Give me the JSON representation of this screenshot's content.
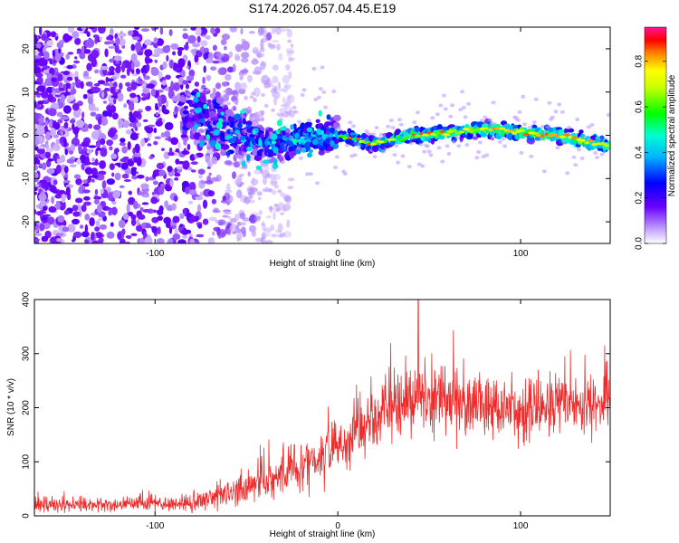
{
  "figure_title": "S174.2026.057.04.45.E19",
  "chart_data": [
    {
      "type": "heatmap",
      "title": "S174.2026.057.04.45.E19",
      "xlabel": "Height of straight line (km)",
      "ylabel": "Frequency (Hz)",
      "xlim": [
        -166,
        149
      ],
      "ylim": [
        -25,
        25
      ],
      "xticks": [
        -100,
        0,
        100
      ],
      "yticks": [
        -20,
        -10,
        0,
        10,
        20
      ],
      "xtick_labels": [
        "-100",
        "0",
        "100"
      ],
      "ytick_labels": [
        "-20",
        "-10",
        "0",
        "10",
        "20"
      ],
      "grid": false,
      "colorbar": {
        "label": "Normalized spectral amplitude",
        "range": [
          0,
          0.95
        ],
        "ticks": [
          0.0,
          0.2,
          0.4,
          0.6,
          0.8
        ],
        "tick_labels": [
          "0.0",
          "0.2",
          "0.4",
          "0.6",
          "0.8"
        ],
        "colormap": "rainbow (white-violet-blue-cyan-green-yellow-orange-red-magenta)"
      },
      "description_points": {
        "ridge_center_hz": [
          {
            "x": -75,
            "y": 5
          },
          {
            "x": -60,
            "y": 1
          },
          {
            "x": -40,
            "y": -2
          },
          {
            "x": -20,
            "y": -1
          },
          {
            "x": 0,
            "y": 0
          },
          {
            "x": 20,
            "y": -2
          },
          {
            "x": 40,
            "y": 0
          },
          {
            "x": 60,
            "y": 0.5
          },
          {
            "x": 80,
            "y": 1.5
          },
          {
            "x": 100,
            "y": 0.8
          },
          {
            "x": 120,
            "y": 0
          },
          {
            "x": 149,
            "y": -2.5
          }
        ],
        "noise_region_x": [
          -166,
          -45
        ]
      }
    },
    {
      "type": "line",
      "xlabel": "Height of straight line (km)",
      "ylabel": "SNR (10 * v/v)",
      "xlim": [
        -166,
        149
      ],
      "ylim": [
        0,
        400
      ],
      "xticks": [
        -100,
        0,
        100
      ],
      "yticks": [
        0,
        100,
        200,
        300,
        400
      ],
      "xtick_labels": [
        "-100",
        "0",
        "100"
      ],
      "ytick_labels": [
        "0",
        "100",
        "200",
        "300",
        "400"
      ],
      "grid": false,
      "color": "#ee2c2c",
      "series": [
        {
          "name": "SNR",
          "trend_x": [
            -166,
            -120,
            -90,
            -70,
            -50,
            -30,
            -10,
            0,
            10,
            20,
            30,
            50,
            70,
            100,
            130,
            149
          ],
          "trend_y": [
            20,
            20,
            22,
            30,
            50,
            75,
            110,
            130,
            150,
            185,
            205,
            220,
            210,
            195,
            205,
            215
          ],
          "spread": [
            12,
            12,
            15,
            20,
            30,
            40,
            50,
            55,
            55,
            60,
            60,
            65,
            60,
            55,
            55,
            50
          ],
          "peak": {
            "x": 44,
            "y": 400
          }
        }
      ]
    }
  ]
}
